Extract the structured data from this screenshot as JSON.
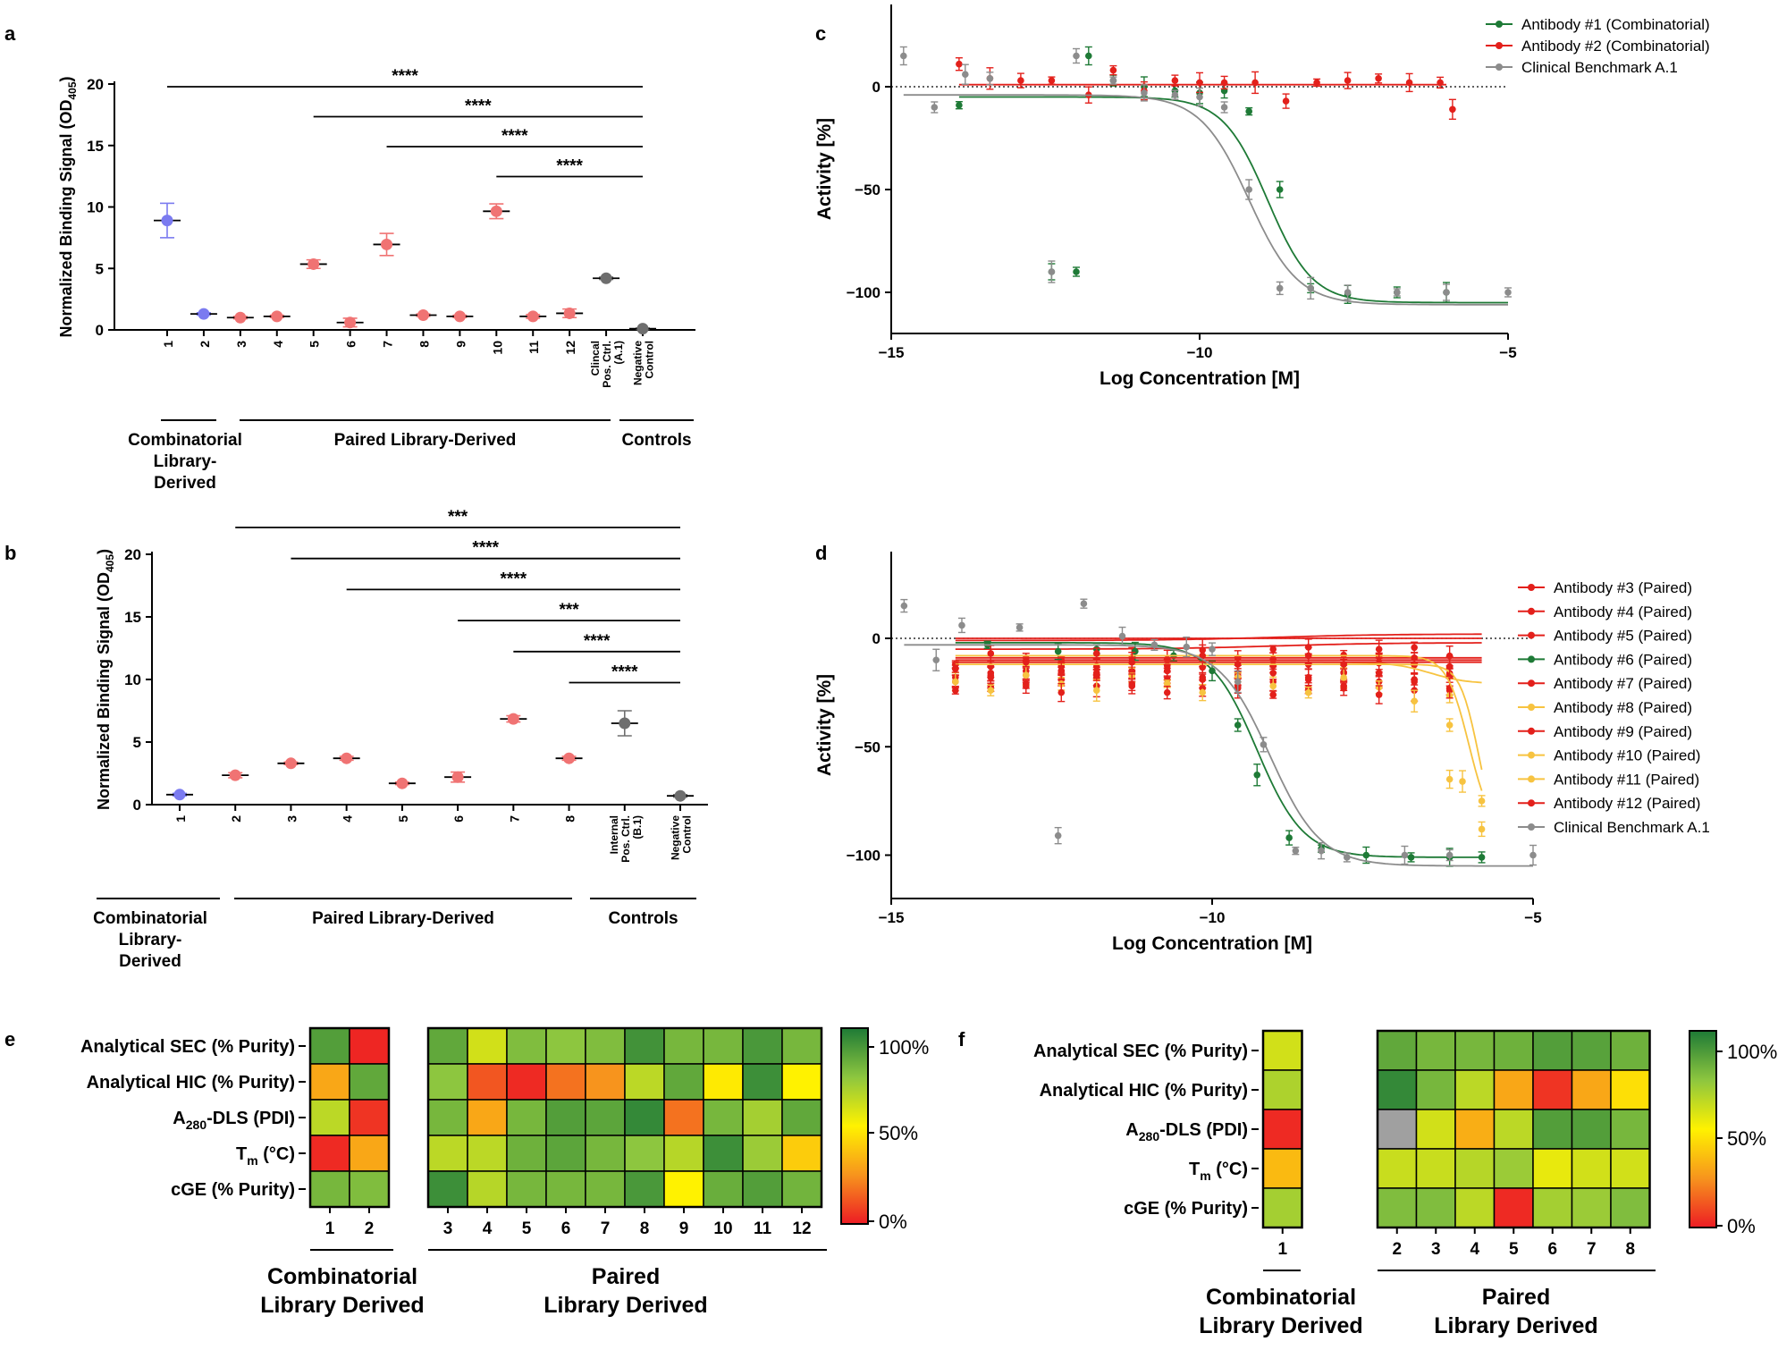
{
  "colors": {
    "combinatorial": "#7b7bf0",
    "paired": "#f07373",
    "control": "#6e6e6e",
    "green": "#1e7a36",
    "red": "#e3201b",
    "gray": "#8c8c8c",
    "yellow": "#f7c340"
  },
  "panel_labels": {
    "a": "a",
    "b": "b",
    "c": "c",
    "d": "d",
    "e": "e",
    "f": "f"
  },
  "chart_data": [
    {
      "id": "a",
      "type": "scatter",
      "ylabel": "Normalized Binding Signal (OD",
      "ylabel_sub": "405",
      "ylabel_end": ")",
      "ylim": [
        0,
        20
      ],
      "yticks": [
        "0",
        "5",
        "10",
        "15",
        "20"
      ],
      "categories": [
        "1",
        "2",
        "3",
        "4",
        "5",
        "6",
        "7",
        "8",
        "9",
        "10",
        "11",
        "12",
        "Clincal Pos. Ctrl. (A.1)",
        "Negative Control"
      ],
      "values": [
        8.9,
        1.3,
        1.0,
        1.1,
        5.35,
        0.6,
        6.95,
        1.2,
        1.1,
        9.65,
        1.1,
        1.35,
        4.2,
        0.1
      ],
      "errors": [
        1.4,
        0.1,
        0.1,
        0.1,
        0.35,
        0.35,
        0.9,
        0.1,
        0.1,
        0.6,
        0.15,
        0.35,
        0.1,
        0.05
      ],
      "groups": [
        "combinatorial",
        "combinatorial",
        "paired",
        "paired",
        "paired",
        "paired",
        "paired",
        "paired",
        "paired",
        "paired",
        "paired",
        "paired",
        "control",
        "control"
      ],
      "group_labels": [
        {
          "lines": [
            "Combinatorial",
            "Library-",
            "Derived"
          ]
        },
        {
          "lines": [
            "Paired Library-Derived"
          ]
        },
        {
          "lines": [
            "Controls"
          ]
        }
      ],
      "significance": [
        {
          "from": "1",
          "label": "****"
        },
        {
          "from": "5",
          "label": "****"
        },
        {
          "from": "7",
          "label": "****"
        },
        {
          "from": "10",
          "label": "****"
        }
      ]
    },
    {
      "id": "b",
      "type": "scatter",
      "ylabel": "Normalized Binding Signal (OD",
      "ylabel_sub": "405",
      "ylabel_end": ")",
      "ylim": [
        0,
        20
      ],
      "yticks": [
        "0",
        "5",
        "10",
        "15",
        "20"
      ],
      "categories": [
        "1",
        "2",
        "3",
        "4",
        "5",
        "6",
        "7",
        "8",
        "Internal Pos. Ctrl. (B.1)",
        "Negative Control"
      ],
      "values": [
        0.8,
        2.35,
        3.3,
        3.7,
        1.7,
        2.2,
        6.85,
        3.7,
        6.5,
        0.7
      ],
      "errors": [
        0.1,
        0.2,
        0.1,
        0.15,
        0.1,
        0.4,
        0.25,
        0.15,
        1.0,
        0.1
      ],
      "groups": [
        "combinatorial",
        "paired",
        "paired",
        "paired",
        "paired",
        "paired",
        "paired",
        "paired",
        "control",
        "control"
      ],
      "group_labels": [
        {
          "lines": [
            "Combinatorial",
            "Library-",
            "Derived"
          ]
        },
        {
          "lines": [
            "Paired Library-Derived"
          ]
        },
        {
          "lines": [
            "Controls"
          ]
        }
      ],
      "significance": [
        {
          "from": "2",
          "label": "***"
        },
        {
          "from": "3",
          "label": "****"
        },
        {
          "from": "4",
          "label": "****"
        },
        {
          "from": "6",
          "label": "***"
        },
        {
          "from": "7",
          "label": "****"
        },
        {
          "from": "8",
          "label": "****"
        }
      ]
    },
    {
      "id": "c",
      "type": "line",
      "xlabel": "Log Concentration [M]",
      "ylabel": "Activity [%]",
      "xlim": [
        -15,
        -5
      ],
      "ylim": [
        -120,
        40
      ],
      "xticks": [
        "-15",
        "-10",
        "-5"
      ],
      "yticks": [
        "0",
        "-50",
        "-100"
      ],
      "series": [
        {
          "name": "Antibody #1 (Combinatorial)",
          "color": "green",
          "curve": {
            "top": -5,
            "bottom": -105,
            "logIC50": -8.9,
            "hill": 1.2,
            "from": -13.9,
            "to": -5
          },
          "points": [
            [
              -13.9,
              -9
            ],
            [
              -12.4,
              -90
            ],
            [
              -12.0,
              -90
            ],
            [
              -11.8,
              15
            ],
            [
              -11.4,
              3
            ],
            [
              -10.9,
              0
            ],
            [
              -10.4,
              -2
            ],
            [
              -10.0,
              -3
            ],
            [
              -9.6,
              -2
            ],
            [
              -9.2,
              -12
            ],
            [
              -8.7,
              -50
            ],
            [
              -8.2,
              -98
            ],
            [
              -7.6,
              -101
            ],
            [
              -6.8,
              -100
            ],
            [
              -6.0,
              -100
            ]
          ]
        },
        {
          "name": "Antibody #2 (Combinatorial)",
          "color": "red",
          "curve": {
            "top": 1,
            "bottom": 1,
            "logIC50": -9,
            "hill": 1,
            "from": -13.9,
            "to": -6
          },
          "points": [
            [
              -13.9,
              11
            ],
            [
              -13.4,
              4
            ],
            [
              -12.9,
              3
            ],
            [
              -12.4,
              3
            ],
            [
              -11.8,
              -4
            ],
            [
              -11.4,
              8
            ],
            [
              -10.9,
              -2
            ],
            [
              -10.4,
              3
            ],
            [
              -10.0,
              2
            ],
            [
              -9.6,
              2
            ],
            [
              -9.1,
              2
            ],
            [
              -8.6,
              -7
            ],
            [
              -8.1,
              2
            ],
            [
              -7.6,
              3
            ],
            [
              -7.1,
              4
            ],
            [
              -6.6,
              2
            ],
            [
              -6.1,
              2
            ],
            [
              -5.9,
              -11
            ]
          ]
        },
        {
          "name": "Clinical Benchmark A.1",
          "color": "gray",
          "curve": {
            "top": -4,
            "bottom": -106,
            "logIC50": -9.2,
            "hill": 1.1,
            "from": -14.8,
            "to": -5
          },
          "points": [
            [
              -14.8,
              15
            ],
            [
              -14.3,
              -10
            ],
            [
              -13.8,
              6
            ],
            [
              -13.4,
              4
            ],
            [
              -12.4,
              -90
            ],
            [
              -12.0,
              15
            ],
            [
              -11.4,
              3
            ],
            [
              -10.9,
              -3
            ],
            [
              -10.4,
              -4
            ],
            [
              -10.0,
              -5
            ],
            [
              -9.6,
              -10
            ],
            [
              -9.2,
              -50
            ],
            [
              -8.7,
              -98
            ],
            [
              -8.2,
              -98
            ],
            [
              -7.6,
              -100
            ],
            [
              -6.8,
              -100
            ],
            [
              -6.0,
              -100
            ],
            [
              -5.0,
              -100
            ]
          ]
        }
      ]
    },
    {
      "id": "d",
      "type": "line",
      "xlabel": "Log Concentration [M]",
      "ylabel": "Activity [%]",
      "xlim": [
        -15,
        -5
      ],
      "ylim": [
        -120,
        40
      ],
      "xticks": [
        "-15",
        "-10",
        "-5"
      ],
      "yticks": [
        "0",
        "-50",
        "-100"
      ],
      "series": [
        {
          "name": "Antibody #3 (Paired)",
          "color": "red",
          "curve": {
            "top": -1,
            "bottom": 2,
            "logIC50": -9,
            "hill": 0.5,
            "from": -14,
            "to": -5.8
          }
        },
        {
          "name": "Antibody #4 (Paired)",
          "color": "red",
          "curve": {
            "top": -5,
            "bottom": -2,
            "logIC50": -9,
            "hill": 0.5,
            "from": -14,
            "to": -5.8
          }
        },
        {
          "name": "Antibody #5 (Paired)",
          "color": "red",
          "curve": {
            "top": -10,
            "bottom": -10,
            "logIC50": -9,
            "hill": 1,
            "from": -14,
            "to": -5.8
          }
        },
        {
          "name": "Antibody #6 (Paired)",
          "color": "green",
          "curve": {
            "top": -2,
            "bottom": -101,
            "logIC50": -9.3,
            "hill": 1.2,
            "from": -14,
            "to": -5.8
          },
          "points": [
            [
              -13.5,
              -3
            ],
            [
              -12.4,
              -6
            ],
            [
              -11.8,
              -5
            ],
            [
              -11.2,
              -6
            ],
            [
              -10.6,
              -8
            ],
            [
              -10.0,
              -15
            ],
            [
              -9.6,
              -40
            ],
            [
              -9.3,
              -63
            ],
            [
              -8.8,
              -92
            ],
            [
              -8.3,
              -97
            ],
            [
              -7.6,
              -100
            ],
            [
              -6.9,
              -101
            ],
            [
              -6.3,
              -101
            ],
            [
              -5.8,
              -101
            ]
          ]
        },
        {
          "name": "Antibody #7 (Paired)",
          "color": "red",
          "curve": {
            "top": -9,
            "bottom": -9,
            "logIC50": -9,
            "hill": 1,
            "from": -14,
            "to": -5.8
          }
        },
        {
          "name": "Antibody #8 (Paired)",
          "color": "yellow",
          "curve": {
            "top": -11,
            "bottom": -21,
            "logIC50": -6.6,
            "hill": 1.5,
            "from": -14,
            "to": -5.8
          }
        },
        {
          "name": "Antibody #9 (Paired)",
          "color": "red",
          "curve": {
            "top": -11,
            "bottom": -11,
            "logIC50": -9,
            "hill": 1,
            "from": -14,
            "to": -5.8
          }
        },
        {
          "name": "Antibody #10 (Paired)",
          "color": "yellow",
          "curve": {
            "top": -8,
            "bottom": -90,
            "logIC50": -6.0,
            "hill": 2.5,
            "from": -14,
            "to": -5.8
          },
          "points": [
            [
              -6.3,
              -40
            ],
            [
              -6.1,
              -66
            ],
            [
              -5.8,
              -88
            ]
          ]
        },
        {
          "name": "Antibody #11 (Paired)",
          "color": "yellow",
          "curve": {
            "top": -12,
            "bottom": -95,
            "logIC50": -5.85,
            "hill": 3,
            "from": -14,
            "to": -5.8
          },
          "points": [
            [
              -6.3,
              -65
            ],
            [
              -5.8,
              -75
            ]
          ]
        },
        {
          "name": "Antibody #12 (Paired)",
          "color": "red",
          "curve": {
            "top": 0,
            "bottom": 0,
            "logIC50": -9,
            "hill": 1,
            "from": -14,
            "to": -5.8
          }
        },
        {
          "name": "Clinical Benchmark A.1",
          "color": "gray",
          "curve": {
            "top": -3,
            "bottom": -105,
            "logIC50": -9.1,
            "hill": 1.1,
            "from": -14.8,
            "to": -5
          },
          "points": [
            [
              -14.8,
              15
            ],
            [
              -14.3,
              -10
            ],
            [
              -13.9,
              6
            ],
            [
              -13.0,
              5
            ],
            [
              -12.4,
              -91
            ],
            [
              -12.0,
              16
            ],
            [
              -11.4,
              1
            ],
            [
              -10.9,
              -3
            ],
            [
              -10.4,
              -4
            ],
            [
              -10.0,
              -5
            ],
            [
              -9.6,
              -20
            ],
            [
              -9.2,
              -49
            ],
            [
              -8.7,
              -98
            ],
            [
              -8.3,
              -98
            ],
            [
              -7.9,
              -101
            ],
            [
              -7.0,
              -100
            ],
            [
              -6.3,
              -100
            ],
            [
              -5.0,
              -100
            ]
          ]
        }
      ]
    },
    {
      "id": "e",
      "type": "heatmap",
      "rows": [
        "Analytical SEC (% Purity)",
        "Analytical HIC (% Purity)",
        "A280-DLS (PDI)",
        "Tm (°C)",
        "cGE (% Purity)"
      ],
      "scale_ticks": [
        "100%",
        "50%",
        "0%"
      ],
      "blocks": [
        {
          "columns": [
            "1",
            "2"
          ],
          "group_label": [
            "Combinatorial",
            "Library Derived"
          ],
          "values": [
            [
              88,
              2
            ],
            [
              30,
              85
            ],
            [
              65,
              5
            ],
            [
              3,
              30
            ],
            [
              80,
              78
            ]
          ]
        },
        {
          "columns": [
            "3",
            "4",
            "5",
            "6",
            "7",
            "8",
            "9",
            "10",
            "11",
            "12"
          ],
          "group_label": [
            "Paired",
            "Library Derived"
          ],
          "values": [
            [
              85,
              60,
              78,
              75,
              78,
              92,
              80,
              80,
              90,
              80
            ],
            [
              75,
              12,
              3,
              18,
              25,
              65,
              85,
              48,
              93,
              50
            ],
            [
              80,
              30,
              80,
              88,
              86,
              95,
              18,
              80,
              70,
              85
            ],
            [
              65,
              65,
              82,
              86,
              80,
              75,
              66,
              93,
              72,
              40
            ],
            [
              93,
              66,
              80,
              80,
              80,
              90,
              50,
              83,
              88,
              81
            ]
          ]
        }
      ]
    },
    {
      "id": "f",
      "type": "heatmap",
      "rows": [
        "Analytical SEC (% Purity)",
        "Analytical HIC (% Purity)",
        "A280-DLS (PDI)",
        "Tm (°C)",
        "cGE (% Purity)"
      ],
      "scale_ticks": [
        "100%",
        "50%",
        "0%"
      ],
      "blocks": [
        {
          "columns": [
            "1"
          ],
          "group_label": [
            "Combinatorial",
            "Library Derived"
          ],
          "values": [
            [
              60
            ],
            [
              68
            ],
            [
              3
            ],
            [
              35
            ],
            [
              70
            ]
          ]
        },
        {
          "columns": [
            "2",
            "3",
            "4",
            "5",
            "6",
            "7",
            "8"
          ],
          "group_label": [
            "Paired",
            "Library Derived"
          ],
          "values": [
            [
              85,
              80,
              80,
              82,
              88,
              87,
              82
            ],
            [
              95,
              80,
              65,
              30,
              5,
              30,
              45
            ],
            [
              null,
              60,
              32,
              65,
              88,
              88,
              80
            ],
            [
              62,
              62,
              66,
              72,
              55,
              60,
              60
            ],
            [
              78,
              78,
              65,
              3,
              70,
              72,
              78
            ]
          ]
        }
      ]
    }
  ],
  "row_display": {
    "e": [
      {
        "main": "Analytical SEC (% Purity)"
      },
      {
        "main": "Analytical HIC (% Purity)"
      },
      {
        "main": "A",
        "sub": "280",
        "rest": "-DLS (PDI)"
      },
      {
        "main": "T",
        "sub": "m",
        "rest": " (°C)"
      },
      {
        "main": "cGE (% Purity)"
      }
    ]
  }
}
